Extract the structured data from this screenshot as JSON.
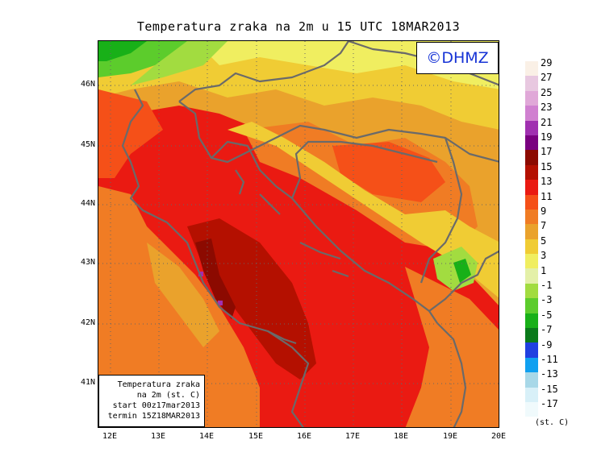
{
  "title": "Temperatura zraka na 2m u 15 UTC 18MAR2013",
  "logo_text": "©DHMZ",
  "info": {
    "line1": "Temperatura zraka",
    "line2": "na 2m (st. C)",
    "line3": "start 00z17mar2013",
    "line4": "termin 15Z18MAR2013"
  },
  "axes": {
    "lon_labels": [
      "12E",
      "13E",
      "14E",
      "15E",
      "16E",
      "17E",
      "18E",
      "19E",
      "20E"
    ],
    "lat_labels": [
      "46N",
      "45N",
      "44N",
      "43N",
      "42N",
      "41N"
    ],
    "lon_range": [
      11.75,
      20.0
    ],
    "lat_range": [
      40.2,
      46.7
    ],
    "grid": true
  },
  "legend": {
    "labels": [
      "29",
      "27",
      "25",
      "23",
      "21",
      "19",
      "17",
      "15",
      "13",
      "11",
      "9",
      "7",
      "5",
      "3",
      "1",
      "-1",
      "-3",
      "-5",
      "-7",
      "-9",
      "-11",
      "-13",
      "-15",
      "-17"
    ],
    "colors": [
      "#faf0e6",
      "#e8c8e0",
      "#e0a8d8",
      "#d080d0",
      "#a030b0",
      "#7a0080",
      "#8c0a00",
      "#b41000",
      "#ea1a12",
      "#f55018",
      "#f07c24",
      "#eaa22c",
      "#f0cc34",
      "#f0ee60",
      "#e4f0a8",
      "#a2dc40",
      "#5ccc2c",
      "#18b018",
      "#0a7a1a",
      "#2040e0",
      "#10a0f0",
      "#a8d8e8",
      "#d8f0f8",
      "#f0fafc"
    ],
    "unit": "(st. C)"
  },
  "colors": {
    "coastline": "#6a6a6a",
    "logo_text": "#1633d6"
  }
}
